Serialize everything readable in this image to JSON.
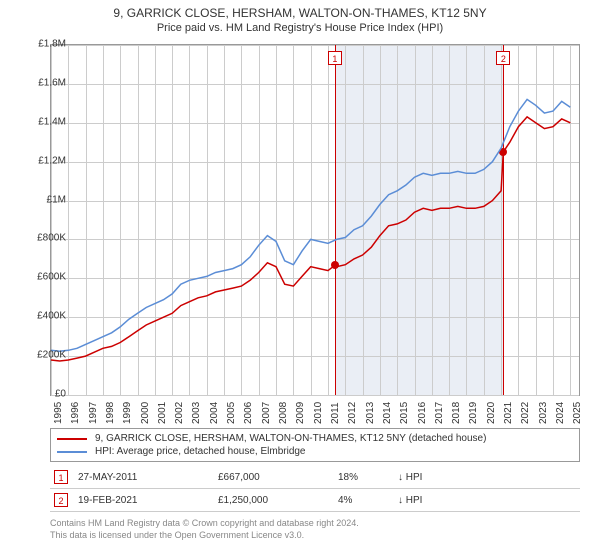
{
  "title": "9, GARRICK CLOSE, HERSHAM, WALTON-ON-THAMES, KT12 5NY",
  "subtitle": "Price paid vs. HM Land Registry's House Price Index (HPI)",
  "chart": {
    "type": "line",
    "background_color": "#ffffff",
    "shaded_color": "#eaeef5",
    "grid_color": "#cccccc",
    "border_color": "#999999",
    "x_range": [
      1995,
      2025.5
    ],
    "y_range": [
      0,
      1800000
    ],
    "y_ticks": [
      {
        "v": 0,
        "label": "£0"
      },
      {
        "v": 200000,
        "label": "£200K"
      },
      {
        "v": 400000,
        "label": "£400K"
      },
      {
        "v": 600000,
        "label": "£600K"
      },
      {
        "v": 800000,
        "label": "£800K"
      },
      {
        "v": 1000000,
        "label": "£1M"
      },
      {
        "v": 1200000,
        "label": "£1.2M"
      },
      {
        "v": 1400000,
        "label": "£1.4M"
      },
      {
        "v": 1600000,
        "label": "£1.6M"
      },
      {
        "v": 1800000,
        "label": "£1.8M"
      }
    ],
    "x_ticks": [
      1995,
      1996,
      1997,
      1998,
      1999,
      2000,
      2001,
      2002,
      2003,
      2004,
      2005,
      2006,
      2007,
      2008,
      2009,
      2010,
      2011,
      2012,
      2013,
      2014,
      2015,
      2016,
      2017,
      2018,
      2019,
      2020,
      2021,
      2022,
      2023,
      2024,
      2025
    ],
    "series": [
      {
        "name": "9, GARRICK CLOSE, HERSHAM, WALTON-ON-THAMES, KT12 5NY (detached house)",
        "color": "#cc0000",
        "line_width": 1.5,
        "data": [
          {
            "x": 1995,
            "y": 180000
          },
          {
            "x": 1995.5,
            "y": 175000
          },
          {
            "x": 1996,
            "y": 180000
          },
          {
            "x": 1996.5,
            "y": 190000
          },
          {
            "x": 1997,
            "y": 200000
          },
          {
            "x": 1997.5,
            "y": 220000
          },
          {
            "x": 1998,
            "y": 240000
          },
          {
            "x": 1998.5,
            "y": 250000
          },
          {
            "x": 1999,
            "y": 270000
          },
          {
            "x": 1999.5,
            "y": 300000
          },
          {
            "x": 2000,
            "y": 330000
          },
          {
            "x": 2000.5,
            "y": 360000
          },
          {
            "x": 2001,
            "y": 380000
          },
          {
            "x": 2001.5,
            "y": 400000
          },
          {
            "x": 2002,
            "y": 420000
          },
          {
            "x": 2002.5,
            "y": 460000
          },
          {
            "x": 2003,
            "y": 480000
          },
          {
            "x": 2003.5,
            "y": 500000
          },
          {
            "x": 2004,
            "y": 510000
          },
          {
            "x": 2004.5,
            "y": 530000
          },
          {
            "x": 2005,
            "y": 540000
          },
          {
            "x": 2005.5,
            "y": 550000
          },
          {
            "x": 2006,
            "y": 560000
          },
          {
            "x": 2006.5,
            "y": 590000
          },
          {
            "x": 2007,
            "y": 630000
          },
          {
            "x": 2007.5,
            "y": 680000
          },
          {
            "x": 2008,
            "y": 660000
          },
          {
            "x": 2008.5,
            "y": 570000
          },
          {
            "x": 2009,
            "y": 560000
          },
          {
            "x": 2009.5,
            "y": 610000
          },
          {
            "x": 2010,
            "y": 660000
          },
          {
            "x": 2010.5,
            "y": 650000
          },
          {
            "x": 2011,
            "y": 640000
          },
          {
            "x": 2011.4,
            "y": 667000
          },
          {
            "x": 2011.5,
            "y": 660000
          },
          {
            "x": 2012,
            "y": 670000
          },
          {
            "x": 2012.5,
            "y": 700000
          },
          {
            "x": 2013,
            "y": 720000
          },
          {
            "x": 2013.5,
            "y": 760000
          },
          {
            "x": 2014,
            "y": 820000
          },
          {
            "x": 2014.5,
            "y": 870000
          },
          {
            "x": 2015,
            "y": 880000
          },
          {
            "x": 2015.5,
            "y": 900000
          },
          {
            "x": 2016,
            "y": 940000
          },
          {
            "x": 2016.5,
            "y": 960000
          },
          {
            "x": 2017,
            "y": 950000
          },
          {
            "x": 2017.5,
            "y": 960000
          },
          {
            "x": 2018,
            "y": 960000
          },
          {
            "x": 2018.5,
            "y": 970000
          },
          {
            "x": 2019,
            "y": 960000
          },
          {
            "x": 2019.5,
            "y": 960000
          },
          {
            "x": 2020,
            "y": 970000
          },
          {
            "x": 2020.5,
            "y": 1000000
          },
          {
            "x": 2021,
            "y": 1050000
          },
          {
            "x": 2021.13,
            "y": 1250000
          },
          {
            "x": 2021.5,
            "y": 1300000
          },
          {
            "x": 2022,
            "y": 1380000
          },
          {
            "x": 2022.5,
            "y": 1430000
          },
          {
            "x": 2023,
            "y": 1400000
          },
          {
            "x": 2023.5,
            "y": 1370000
          },
          {
            "x": 2024,
            "y": 1380000
          },
          {
            "x": 2024.5,
            "y": 1420000
          },
          {
            "x": 2025,
            "y": 1400000
          }
        ]
      },
      {
        "name": "HPI: Average price, detached house, Elmbridge",
        "color": "#5b8dd6",
        "line_width": 1.5,
        "data": [
          {
            "x": 1995,
            "y": 230000
          },
          {
            "x": 1995.5,
            "y": 225000
          },
          {
            "x": 1996,
            "y": 230000
          },
          {
            "x": 1996.5,
            "y": 240000
          },
          {
            "x": 1997,
            "y": 260000
          },
          {
            "x": 1997.5,
            "y": 280000
          },
          {
            "x": 1998,
            "y": 300000
          },
          {
            "x": 1998.5,
            "y": 320000
          },
          {
            "x": 1999,
            "y": 350000
          },
          {
            "x": 1999.5,
            "y": 390000
          },
          {
            "x": 2000,
            "y": 420000
          },
          {
            "x": 2000.5,
            "y": 450000
          },
          {
            "x": 2001,
            "y": 470000
          },
          {
            "x": 2001.5,
            "y": 490000
          },
          {
            "x": 2002,
            "y": 520000
          },
          {
            "x": 2002.5,
            "y": 570000
          },
          {
            "x": 2003,
            "y": 590000
          },
          {
            "x": 2003.5,
            "y": 600000
          },
          {
            "x": 2004,
            "y": 610000
          },
          {
            "x": 2004.5,
            "y": 630000
          },
          {
            "x": 2005,
            "y": 640000
          },
          {
            "x": 2005.5,
            "y": 650000
          },
          {
            "x": 2006,
            "y": 670000
          },
          {
            "x": 2006.5,
            "y": 710000
          },
          {
            "x": 2007,
            "y": 770000
          },
          {
            "x": 2007.5,
            "y": 820000
          },
          {
            "x": 2008,
            "y": 790000
          },
          {
            "x": 2008.5,
            "y": 690000
          },
          {
            "x": 2009,
            "y": 670000
          },
          {
            "x": 2009.5,
            "y": 740000
          },
          {
            "x": 2010,
            "y": 800000
          },
          {
            "x": 2010.5,
            "y": 790000
          },
          {
            "x": 2011,
            "y": 780000
          },
          {
            "x": 2011.5,
            "y": 800000
          },
          {
            "x": 2012,
            "y": 810000
          },
          {
            "x": 2012.5,
            "y": 850000
          },
          {
            "x": 2013,
            "y": 870000
          },
          {
            "x": 2013.5,
            "y": 920000
          },
          {
            "x": 2014,
            "y": 980000
          },
          {
            "x": 2014.5,
            "y": 1030000
          },
          {
            "x": 2015,
            "y": 1050000
          },
          {
            "x": 2015.5,
            "y": 1080000
          },
          {
            "x": 2016,
            "y": 1120000
          },
          {
            "x": 2016.5,
            "y": 1140000
          },
          {
            "x": 2017,
            "y": 1130000
          },
          {
            "x": 2017.5,
            "y": 1140000
          },
          {
            "x": 2018,
            "y": 1140000
          },
          {
            "x": 2018.5,
            "y": 1150000
          },
          {
            "x": 2019,
            "y": 1140000
          },
          {
            "x": 2019.5,
            "y": 1140000
          },
          {
            "x": 2020,
            "y": 1160000
          },
          {
            "x": 2020.5,
            "y": 1200000
          },
          {
            "x": 2021,
            "y": 1270000
          },
          {
            "x": 2021.5,
            "y": 1380000
          },
          {
            "x": 2022,
            "y": 1460000
          },
          {
            "x": 2022.5,
            "y": 1520000
          },
          {
            "x": 2023,
            "y": 1490000
          },
          {
            "x": 2023.5,
            "y": 1450000
          },
          {
            "x": 2024,
            "y": 1460000
          },
          {
            "x": 2024.5,
            "y": 1510000
          },
          {
            "x": 2025,
            "y": 1480000
          }
        ]
      }
    ],
    "markers": [
      {
        "num": "1",
        "x": 2011.4,
        "y": 667000,
        "line_color": "#cc0000",
        "point_color": "#cc0000"
      },
      {
        "num": "2",
        "x": 2021.13,
        "y": 1250000,
        "line_color": "#cc0000",
        "point_color": "#cc0000"
      }
    ],
    "shaded_region": {
      "x_start": 2011.4,
      "x_end": 2021.13
    }
  },
  "legend": {
    "items": [
      {
        "color": "#cc0000",
        "label": "9, GARRICK CLOSE, HERSHAM, WALTON-ON-THAMES, KT12 5NY (detached house)"
      },
      {
        "color": "#5b8dd6",
        "label": "HPI: Average price, detached house, Elmbridge"
      }
    ]
  },
  "data_rows": [
    {
      "num": "1",
      "num_color": "#cc0000",
      "date": "27-MAY-2011",
      "price": "£667,000",
      "pct": "18%",
      "icon": "↓",
      "hpi": "HPI"
    },
    {
      "num": "2",
      "num_color": "#cc0000",
      "date": "19-FEB-2021",
      "price": "£1,250,000",
      "pct": "4%",
      "icon": "↓",
      "hpi": "HPI"
    }
  ],
  "footer": {
    "line1": "Contains HM Land Registry data © Crown copyright and database right 2024.",
    "line2": "This data is licensed under the Open Government Licence v3.0."
  }
}
